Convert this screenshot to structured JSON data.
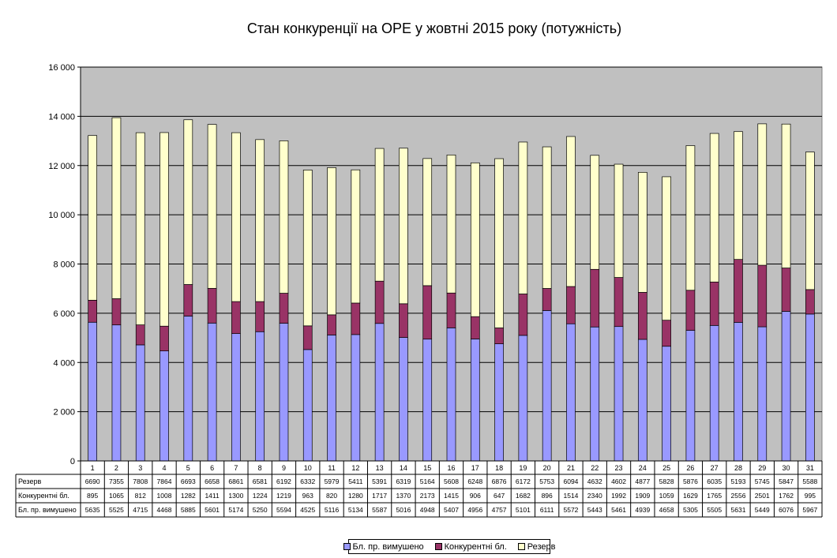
{
  "chart_data": {
    "type": "bar",
    "stacked": true,
    "title": "Стан конкуренції на ОРЕ  у жовтні 2015 року (потужність)",
    "categories": [
      "1",
      "2",
      "3",
      "4",
      "5",
      "6",
      "7",
      "8",
      "9",
      "10",
      "11",
      "12",
      "13",
      "14",
      "15",
      "16",
      "17",
      "18",
      "19",
      "20",
      "21",
      "22",
      "23",
      "24",
      "25",
      "26",
      "27",
      "28",
      "29",
      "30",
      "31"
    ],
    "y_ticks": [
      "0",
      "2 000",
      "4 000",
      "6 000",
      "8 000",
      "10 000",
      "12 000",
      "14 000",
      "16 000"
    ],
    "ylim": [
      0,
      16000
    ],
    "grid": true,
    "legend_position": "bottom",
    "series": [
      {
        "name": "Бл. пр. вимушено",
        "color": "#9999ff",
        "values": [
          5635,
          5525,
          4715,
          4468,
          5885,
          5601,
          5174,
          5250,
          5594,
          4525,
          5116,
          5134,
          5587,
          5016,
          4948,
          5407,
          4956,
          4757,
          5101,
          6111,
          5572,
          5443,
          5461,
          4939,
          4658,
          5305,
          5505,
          5631,
          5449,
          6076,
          5967
        ]
      },
      {
        "name": "Конкурентні бл.",
        "color": "#993366",
        "values": [
          895,
          1065,
          812,
          1008,
          1282,
          1411,
          1300,
          1224,
          1219,
          963,
          820,
          1280,
          1717,
          1370,
          2173,
          1415,
          906,
          647,
          1682,
          896,
          1514,
          2340,
          1992,
          1909,
          1059,
          1629,
          1765,
          2556,
          2501,
          1762,
          995
        ]
      },
      {
        "name": "Резерв",
        "color": "#ffffcc",
        "values": [
          6690,
          7355,
          7808,
          7864,
          6693,
          6658,
          6861,
          6581,
          6192,
          6332,
          5979,
          5411,
          5391,
          6319,
          5164,
          5608,
          6248,
          6876,
          6172,
          5753,
          6094,
          4632,
          4602,
          4877,
          5828,
          5876,
          6035,
          5193,
          5745,
          5847,
          5588
        ]
      }
    ],
    "table_rows": [
      "Резерв",
      "Конкурентні бл.",
      "Бл. пр. вимушено"
    ],
    "colors": {
      "plot_background": "#c0c0c0",
      "gridline": "#000000"
    }
  }
}
